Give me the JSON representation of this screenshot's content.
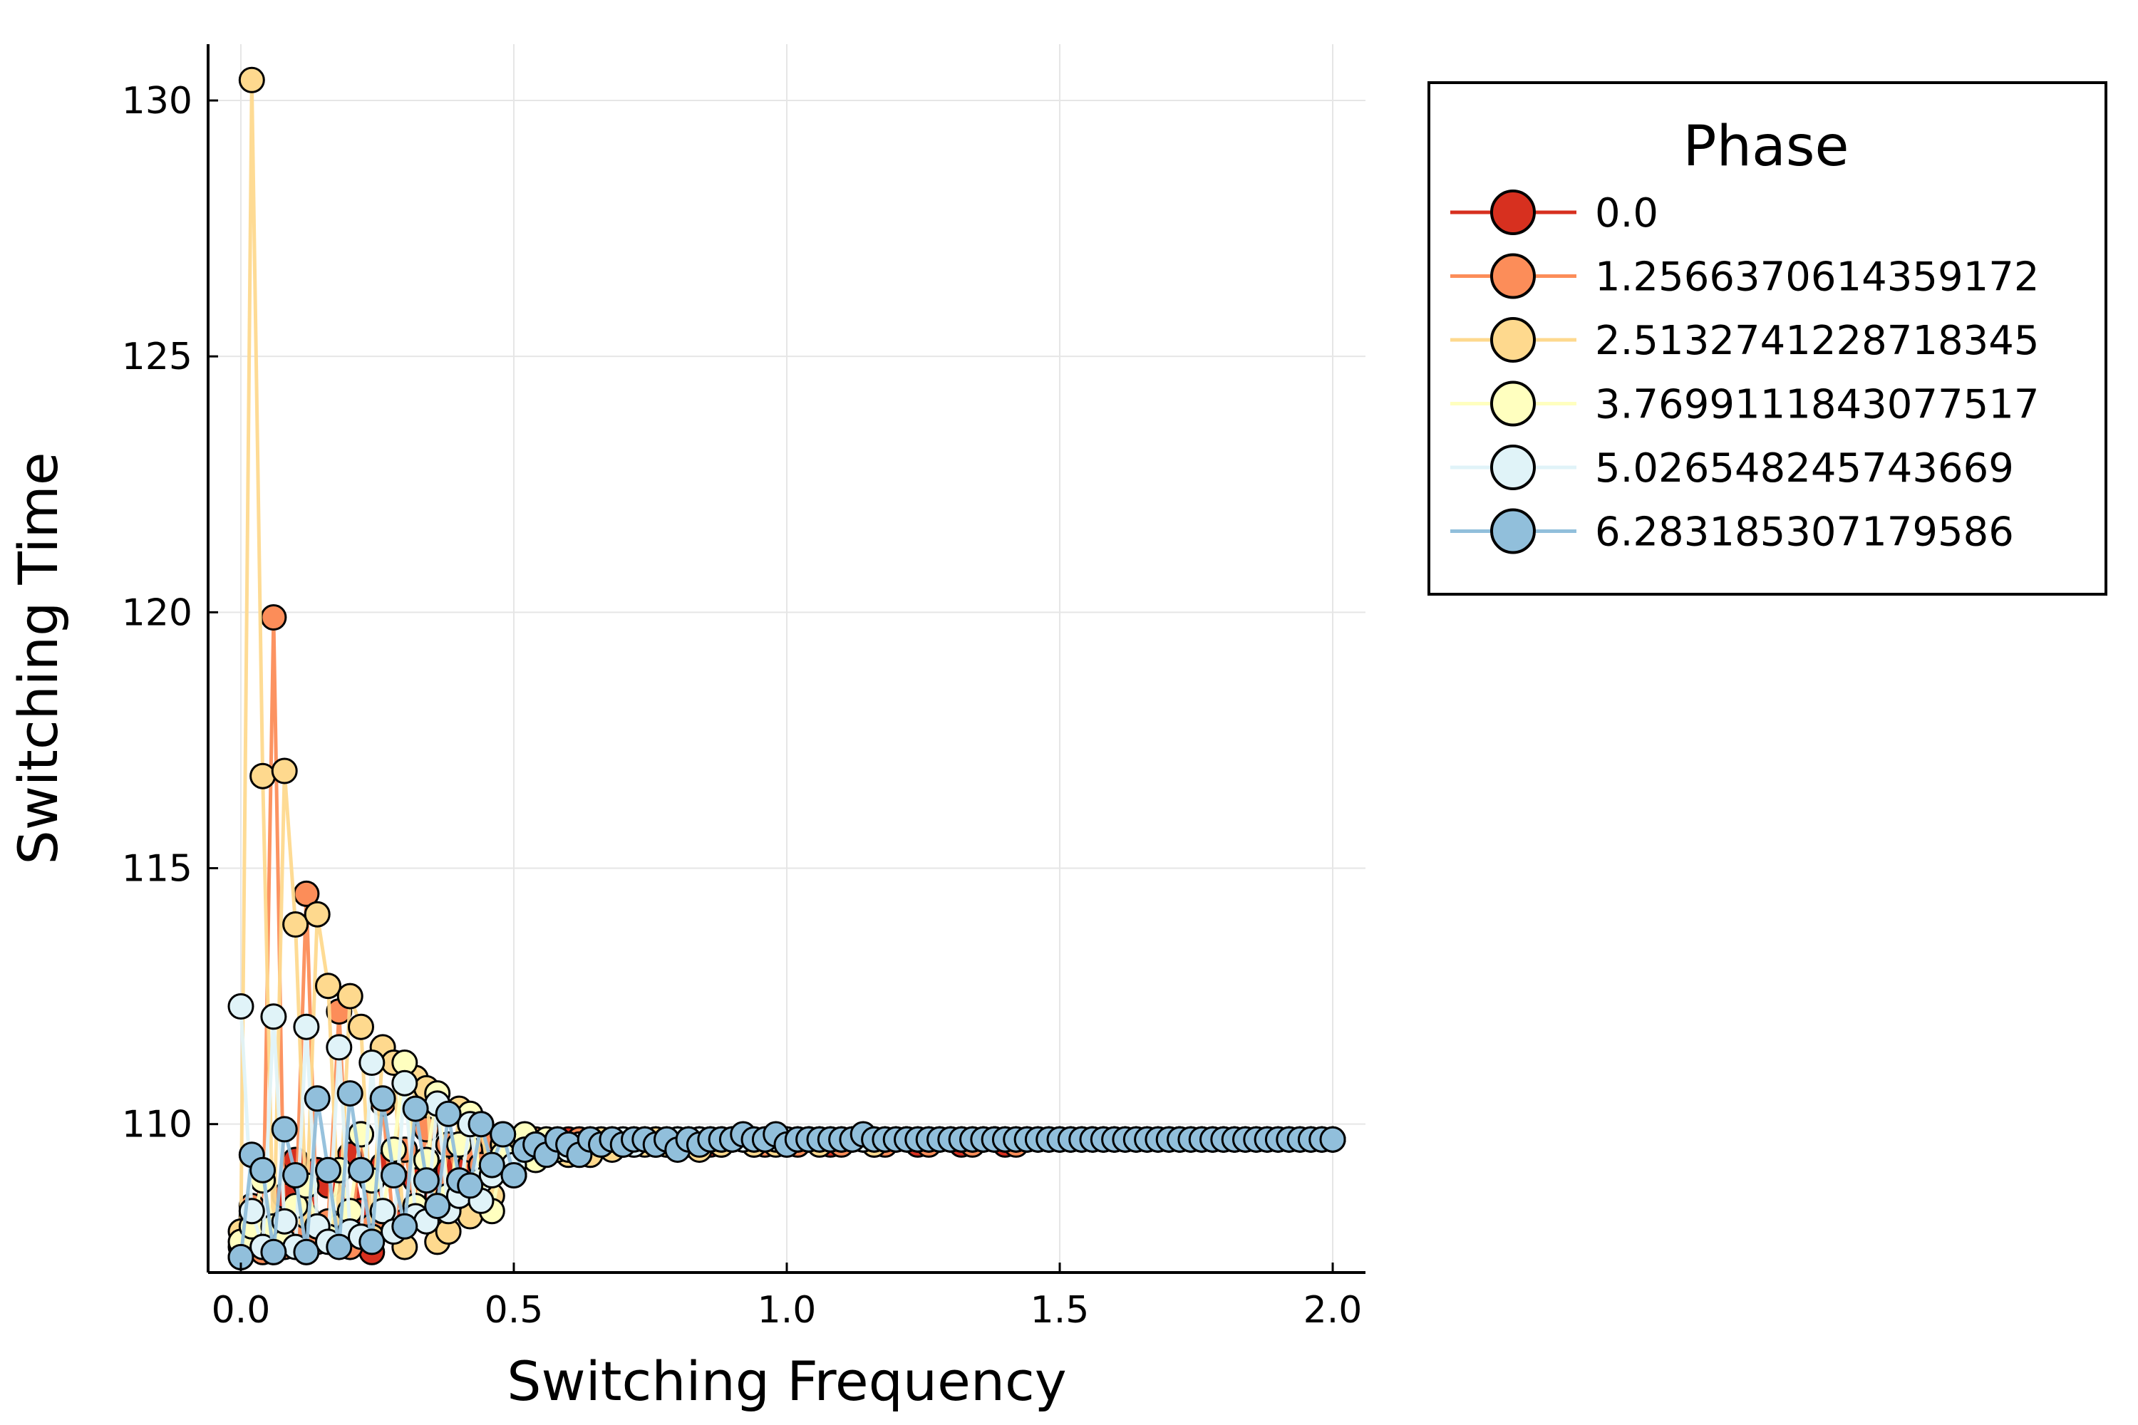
{
  "chart_data": {
    "type": "scatter",
    "xlabel": "Switching Frequency",
    "ylabel": "Switching Time",
    "xlim": [
      -0.06,
      2.06
    ],
    "ylim": [
      107.1,
      131.1
    ],
    "xticks": [
      0.0,
      0.5,
      1.0,
      1.5,
      2.0
    ],
    "xtick_labels": [
      "0.0",
      "0.5",
      "1.0",
      "1.5",
      "2.0"
    ],
    "yticks": [
      110,
      115,
      120,
      125,
      130
    ],
    "ytick_labels": [
      "110",
      "115",
      "120",
      "125",
      "130"
    ],
    "grid": true,
    "legend": {
      "title": "Phase",
      "placement": "outside-right-top"
    },
    "x_step": 0.02,
    "series": [
      {
        "name": "0.0",
        "color": "#d7301f",
        "values": [
          107.4,
          108.2,
          108.9,
          107.8,
          108.6,
          109.3,
          107.5,
          109.1,
          108.8,
          107.7,
          109.4,
          108.3,
          107.5,
          109.2,
          109.0,
          108.1,
          108.9,
          109.3,
          108.6,
          109.1,
          109.5,
          109.2,
          109.4,
          109.3,
          109.6,
          109.5,
          109.7,
          109.6,
          109.7,
          109.6,
          109.7,
          109.7,
          109.6,
          109.7,
          109.7,
          109.6,
          109.7,
          109.7,
          109.7,
          109.6,
          109.7,
          109.7,
          109.7,
          109.6,
          109.7,
          109.7,
          109.7,
          109.6,
          109.7,
          109.7,
          109.6,
          109.7,
          109.7,
          109.7,
          109.6,
          109.7,
          109.7,
          109.7,
          109.6,
          109.7,
          109.7,
          109.7,
          109.6,
          109.7,
          109.7,
          109.7,
          109.6,
          109.7,
          109.7,
          109.7,
          109.6,
          109.7,
          109.7,
          109.7,
          109.7,
          109.7,
          109.7,
          109.7,
          109.7,
          109.7,
          109.7,
          109.7,
          109.7,
          109.7,
          109.7,
          109.7,
          109.7,
          109.7,
          109.7,
          109.7,
          109.7,
          109.7,
          109.7,
          109.7,
          109.7,
          109.7,
          109.7,
          109.7,
          109.7,
          109.7,
          109.7
        ]
      },
      {
        "name": "1.2566370614359172",
        "color": "#fc8d59",
        "values": [
          107.6,
          108.4,
          107.5,
          119.9,
          107.6,
          108.0,
          114.5,
          107.7,
          108.1,
          112.2,
          107.6,
          109.8,
          108.0,
          110.4,
          107.9,
          109.5,
          108.4,
          109.9,
          108.2,
          109.6,
          108.8,
          109.5,
          109.2,
          109.7,
          109.4,
          109.6,
          109.6,
          109.7,
          109.6,
          109.7,
          109.6,
          109.7,
          109.7,
          109.6,
          109.7,
          109.7,
          109.6,
          109.7,
          109.7,
          109.7,
          109.6,
          109.7,
          109.7,
          109.7,
          109.6,
          109.7,
          109.7,
          109.7,
          109.6,
          109.7,
          109.7,
          109.6,
          109.7,
          109.7,
          109.7,
          109.6,
          109.7,
          109.7,
          109.7,
          109.6,
          109.7,
          109.7,
          109.7,
          109.6,
          109.7,
          109.7,
          109.7,
          109.6,
          109.7,
          109.7,
          109.7,
          109.6,
          109.7,
          109.7,
          109.7,
          109.7,
          109.7,
          109.7,
          109.7,
          109.7,
          109.7,
          109.7,
          109.7,
          109.7,
          109.7,
          109.7,
          109.7,
          109.7,
          109.7,
          109.7,
          109.7,
          109.7,
          109.7,
          109.7,
          109.7,
          109.7,
          109.7,
          109.7,
          109.7,
          109.7,
          109.7
        ]
      },
      {
        "name": "2.5132741228718345",
        "color": "#fed98e",
        "values": [
          107.9,
          130.4,
          116.8,
          107.5,
          116.9,
          113.9,
          108.2,
          114.1,
          112.7,
          108.0,
          112.5,
          111.9,
          107.8,
          111.5,
          111.2,
          107.6,
          110.9,
          110.7,
          107.7,
          107.9,
          110.3,
          108.2,
          110.0,
          108.6,
          109.6,
          109.0,
          109.5,
          109.4,
          109.6,
          109.5,
          109.4,
          109.6,
          109.4,
          109.7,
          109.5,
          109.6,
          109.7,
          109.6,
          109.7,
          109.6,
          109.7,
          109.6,
          109.5,
          109.7,
          109.6,
          109.7,
          109.7,
          109.6,
          109.7,
          109.6,
          109.7,
          109.7,
          109.7,
          109.6,
          109.7,
          109.7,
          109.7,
          109.7,
          109.6,
          109.7,
          109.7,
          109.7,
          109.7,
          109.7,
          109.7,
          109.7,
          109.7,
          109.7,
          109.7,
          109.7,
          109.7,
          109.7,
          109.7,
          109.7,
          109.7,
          109.7,
          109.7,
          109.7,
          109.7,
          109.7,
          109.7,
          109.7,
          109.7,
          109.7,
          109.7,
          109.7,
          109.7,
          109.7,
          109.7,
          109.7,
          109.7,
          109.7,
          109.7,
          109.7,
          109.7,
          109.7,
          109.7,
          109.7,
          109.7,
          109.7,
          109.7
        ]
      },
      {
        "name": "3.7699111843077517",
        "color": "#ffffbf",
        "values": [
          107.7,
          108.0,
          108.9,
          108.0,
          107.7,
          108.4,
          108.8,
          108.0,
          107.8,
          109.1,
          108.3,
          109.8,
          108.9,
          108.3,
          109.5,
          111.2,
          108.4,
          109.3,
          110.6,
          108.6,
          109.6,
          110.2,
          108.9,
          108.3,
          109.4,
          109.0,
          109.8,
          109.3,
          109.7,
          109.5,
          109.6,
          109.5,
          109.7,
          109.6,
          109.7,
          109.6,
          109.7,
          109.7,
          109.6,
          109.7,
          109.7,
          109.7,
          109.7,
          109.7,
          109.7,
          109.7,
          109.7,
          109.7,
          109.7,
          109.7,
          109.7,
          109.7,
          109.7,
          109.7,
          109.7,
          109.7,
          109.7,
          109.7,
          109.7,
          109.7,
          109.7,
          109.7,
          109.7,
          109.7,
          109.7,
          109.7,
          109.7,
          109.7,
          109.7,
          109.7,
          109.7,
          109.7,
          109.7,
          109.7,
          109.7,
          109.7,
          109.7,
          109.7,
          109.7,
          109.7,
          109.7,
          109.7,
          109.7,
          109.7,
          109.7,
          109.7,
          109.7,
          109.7,
          109.7,
          109.7,
          109.7,
          109.7,
          109.7,
          109.7,
          109.7,
          109.7,
          109.7,
          109.7,
          109.7,
          109.7,
          109.7
        ]
      },
      {
        "name": "5.026548245743669",
        "color": "#e0f3f8",
        "values": [
          112.3,
          108.3,
          107.6,
          112.1,
          108.1,
          107.6,
          111.9,
          108.0,
          107.7,
          111.5,
          107.9,
          107.8,
          111.2,
          108.3,
          107.9,
          110.8,
          108.2,
          108.1,
          110.4,
          108.3,
          108.6,
          110.0,
          108.5,
          109.0,
          109.8,
          109.2,
          109.5,
          109.6,
          109.5,
          109.7,
          109.5,
          109.6,
          109.7,
          109.6,
          109.7,
          109.7,
          109.6,
          109.7,
          109.6,
          109.7,
          109.7,
          109.7,
          109.7,
          109.7,
          109.7,
          109.7,
          109.7,
          109.7,
          109.7,
          109.7,
          109.7,
          109.7,
          109.7,
          109.7,
          109.7,
          109.7,
          109.7,
          109.7,
          109.7,
          109.7,
          109.7,
          109.7,
          109.7,
          109.7,
          109.7,
          109.7,
          109.7,
          109.7,
          109.7,
          109.7,
          109.7,
          109.7,
          109.7,
          109.7,
          109.7,
          109.7,
          109.7,
          109.7,
          109.7,
          109.7,
          109.7,
          109.7,
          109.7,
          109.7,
          109.7,
          109.7,
          109.7,
          109.7,
          109.7,
          109.7,
          109.7,
          109.7,
          109.7,
          109.7,
          109.7,
          109.7,
          109.7,
          109.7,
          109.7,
          109.7,
          109.7
        ]
      },
      {
        "name": "6.283185307179586",
        "color": "#91bfdb",
        "values": [
          107.4,
          109.4,
          109.1,
          107.5,
          109.9,
          109.0,
          107.5,
          110.5,
          109.1,
          107.6,
          110.6,
          109.1,
          107.7,
          110.5,
          109.0,
          108.0,
          110.3,
          108.9,
          108.4,
          110.2,
          108.9,
          108.8,
          110.0,
          109.2,
          109.8,
          109.0,
          109.5,
          109.6,
          109.4,
          109.7,
          109.6,
          109.4,
          109.7,
          109.6,
          109.7,
          109.6,
          109.7,
          109.7,
          109.6,
          109.7,
          109.5,
          109.7,
          109.6,
          109.7,
          109.7,
          109.7,
          109.8,
          109.7,
          109.7,
          109.8,
          109.6,
          109.7,
          109.7,
          109.7,
          109.7,
          109.7,
          109.7,
          109.8,
          109.7,
          109.7,
          109.7,
          109.7,
          109.7,
          109.7,
          109.7,
          109.7,
          109.7,
          109.7,
          109.7,
          109.7,
          109.7,
          109.7,
          109.7,
          109.7,
          109.7,
          109.7,
          109.7,
          109.7,
          109.7,
          109.7,
          109.7,
          109.7,
          109.7,
          109.7,
          109.7,
          109.7,
          109.7,
          109.7,
          109.7,
          109.7,
          109.7,
          109.7,
          109.7,
          109.7,
          109.7,
          109.7,
          109.7,
          109.7,
          109.7,
          109.7,
          109.7
        ]
      }
    ]
  }
}
